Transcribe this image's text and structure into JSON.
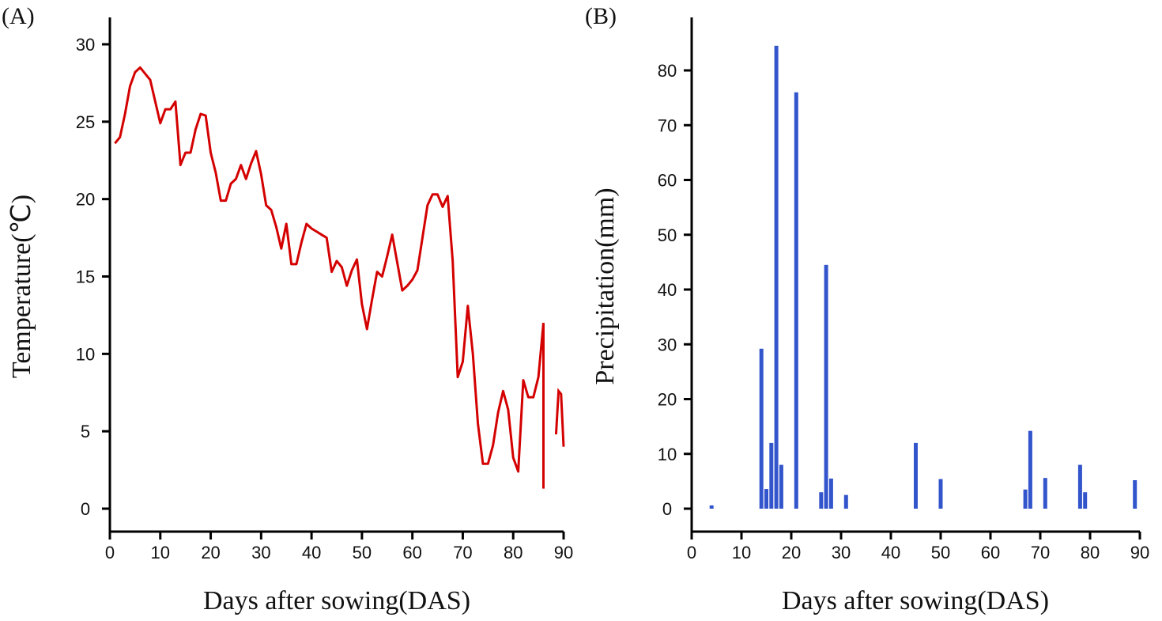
{
  "chart_data": [
    {
      "panel_label": "(A)",
      "type": "line",
      "title": "",
      "xlabel": "Days after sowing(DAS)",
      "ylabel": "Temperature(℃)",
      "xlim": [
        0,
        90
      ],
      "ylim": [
        -1.5,
        31.5
      ],
      "xticks": [
        0,
        10,
        20,
        30,
        40,
        50,
        60,
        70,
        80,
        90
      ],
      "yticks": [
        0,
        5,
        10,
        15,
        20,
        25,
        30
      ],
      "grid": false,
      "series": [
        {
          "name": "Temperature",
          "color": "#d40000",
          "x": [
            1,
            2,
            3,
            4,
            5,
            6,
            7,
            8,
            9,
            10,
            11,
            12,
            13,
            14,
            15,
            16,
            17,
            18,
            19,
            20,
            21,
            22,
            23,
            24,
            25,
            26,
            27,
            28,
            29,
            30,
            31,
            32,
            33,
            34,
            35,
            36,
            37,
            38,
            39,
            40,
            41,
            42,
            43,
            44,
            45,
            46,
            47,
            48,
            49,
            50,
            51,
            52,
            53,
            54,
            55,
            56,
            57,
            58,
            59,
            60,
            61,
            62,
            63,
            64,
            65,
            66,
            67,
            68,
            69,
            70,
            71,
            72,
            73,
            74,
            75,
            76,
            77,
            78,
            79,
            80,
            81,
            82,
            83,
            84,
            85,
            86
          ],
          "y": [
            23.6,
            24,
            25.5,
            27.3,
            28.2,
            28.5,
            28.1,
            27.7,
            26.3,
            24.9,
            25.8,
            25.8,
            26.3,
            22.2,
            23,
            23,
            24.5,
            25.5,
            25.4,
            23,
            21.7,
            19.9,
            19.9,
            21,
            21.3,
            22.2,
            21.3,
            22.3,
            23.1,
            21.6,
            19.6,
            19.3,
            18.2,
            16.8,
            18.4,
            15.8,
            15.8,
            17.2,
            18.4,
            18.1,
            17.9,
            17.7,
            17.5,
            15.3,
            16,
            15.6,
            14.4,
            15.4,
            16.1,
            13.2,
            11.6,
            13.5,
            15.3,
            15,
            16.3,
            17.7,
            15.9,
            14.1,
            14.4,
            14.8,
            15.4,
            17.5,
            19.6,
            20.3,
            20.3,
            19.5,
            20.2,
            16,
            8.5,
            9.5,
            13.1,
            10,
            5.5,
            2.9,
            2.9,
            4.1,
            6.2,
            7.6,
            6.4,
            3.3,
            2.4,
            8.3,
            7.2,
            7.2,
            8.5,
            12
          ],
          "segments_break_after": [
            86
          ],
          "tail": {
            "x": [
              86,
              86
            ],
            "y": [
              12,
              1.3
            ]
          },
          "tail2": {
            "x": [
              88.5,
              89,
              89.5,
              90
            ],
            "y": [
              4.8,
              7.6,
              7.4,
              4.0
            ]
          }
        }
      ]
    },
    {
      "panel_label": "(B)",
      "type": "bar",
      "title": "",
      "xlabel": "Days after sowing(DAS)",
      "ylabel": "Precipitation(mm)",
      "xlim": [
        0,
        90
      ],
      "ylim": [
        -4,
        88
      ],
      "xticks": [
        0,
        10,
        20,
        30,
        40,
        50,
        60,
        70,
        80,
        90
      ],
      "yticks": [
        0,
        10,
        20,
        30,
        40,
        50,
        60,
        70,
        80
      ],
      "grid": false,
      "color": "#3355cc",
      "x": [
        4,
        14,
        15,
        16,
        17,
        18,
        21,
        26,
        27,
        28,
        31,
        45,
        50,
        67,
        68,
        71,
        78,
        79,
        89
      ],
      "values": [
        0.6,
        29.2,
        3.6,
        12,
        84.5,
        8,
        76,
        3,
        44.5,
        5.5,
        2.5,
        12,
        5.4,
        3.5,
        14.2,
        5.6,
        8,
        3,
        5.2
      ]
    }
  ]
}
